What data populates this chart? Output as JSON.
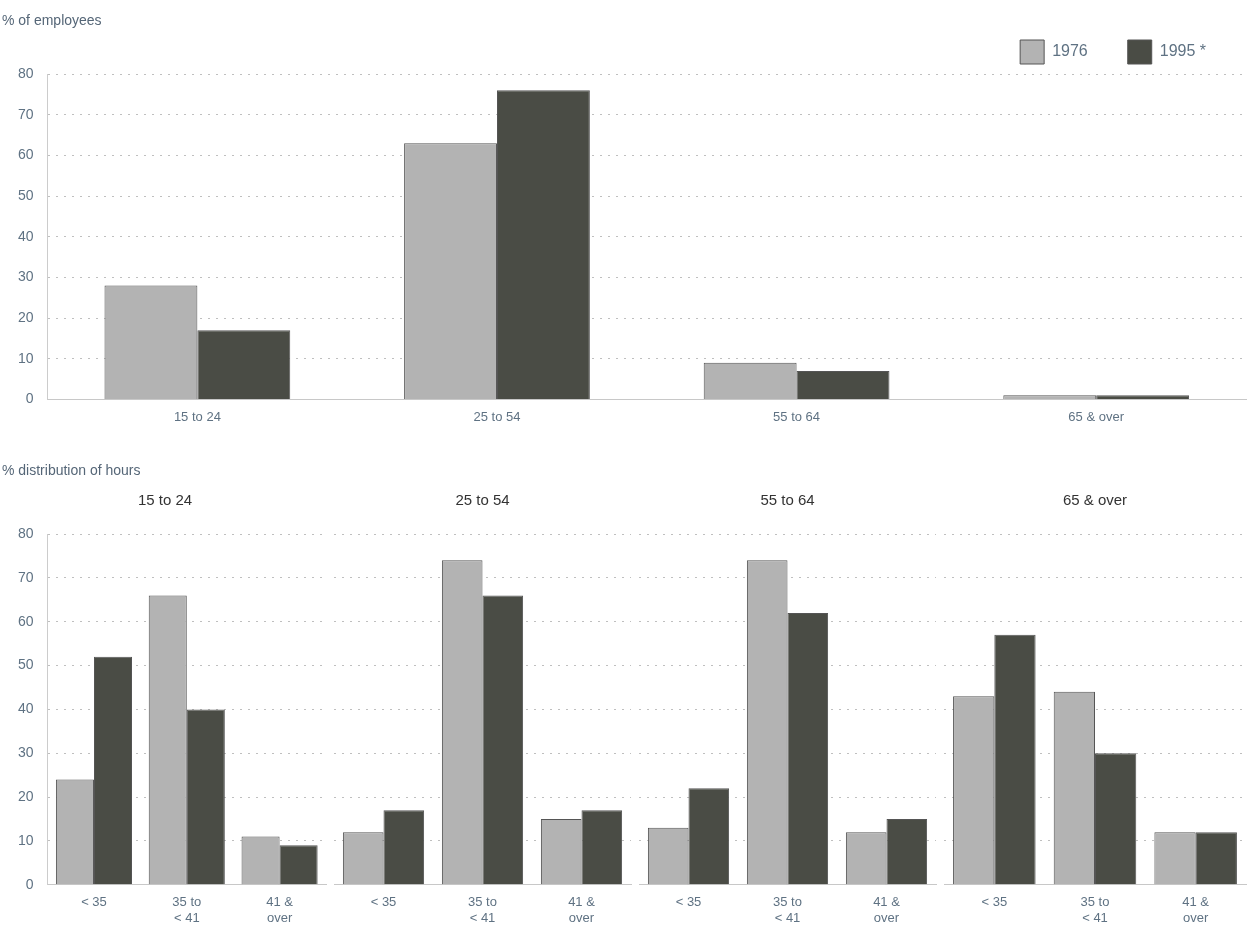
{
  "chart_data": [
    {
      "type": "bar",
      "ylabel": "% of employees",
      "categories": [
        "15 to 24",
        "25 to 54",
        "55 to 64",
        "65 & over"
      ],
      "series": [
        {
          "name": "1976",
          "color": "#b3b3b3",
          "values": [
            28,
            63,
            9,
            1
          ]
        },
        {
          "name": "1995 *",
          "color": "#4a4c45",
          "values": [
            17,
            76,
            7,
            1
          ]
        }
      ],
      "ylim": [
        0,
        80
      ],
      "yticks": [
        0,
        10,
        20,
        30,
        40,
        50,
        60,
        70,
        80
      ],
      "grid": "y",
      "legend": "top right"
    },
    {
      "type": "bar",
      "ylabel": "% distribution of hours",
      "title": "15 to 24",
      "categories": [
        "< 35",
        "35 to < 41",
        "41 & over"
      ],
      "series": [
        {
          "color": "#b3b3b3",
          "values": [
            24,
            66,
            11
          ]
        },
        {
          "color": "#4a4c45",
          "values": [
            52,
            40,
            9
          ]
        }
      ],
      "ylim": [
        0,
        80
      ],
      "yticks": [
        0,
        10,
        20,
        30,
        40,
        50,
        60,
        70,
        80
      ],
      "grid": "y"
    },
    {
      "type": "bar",
      "title": "25 to 54",
      "categories": [
        "< 35",
        "35 to < 41",
        "41 & over"
      ],
      "series": [
        {
          "color": "#b3b3b3",
          "values": [
            12,
            74,
            15
          ]
        },
        {
          "color": "#4a4c45",
          "values": [
            17,
            66,
            17
          ]
        }
      ],
      "ylim": [
        0,
        80
      ],
      "yticks": [
        0,
        10,
        20,
        30,
        40,
        50,
        60,
        70,
        80
      ],
      "grid": "y",
      "tick_labels": "x"
    },
    {
      "type": "bar",
      "title": "55 to 64",
      "categories": [
        "< 35",
        "35 to < 41",
        "41 & over"
      ],
      "series": [
        {
          "color": "#b3b3b3",
          "values": [
            13,
            74,
            12
          ]
        },
        {
          "color": "#4a4c45",
          "values": [
            22,
            62,
            15
          ]
        }
      ],
      "ylim": [
        0,
        80
      ],
      "yticks": [
        0,
        10,
        20,
        30,
        40,
        50,
        60,
        70,
        80
      ],
      "grid": "y",
      "tick_labels": "x"
    },
    {
      "type": "bar",
      "title": "65 & over",
      "categories": [
        "< 35",
        "35 to < 41",
        "41 & over"
      ],
      "series": [
        {
          "color": "#b3b3b3",
          "values": [
            43,
            44,
            12
          ]
        },
        {
          "color": "#4a4c45",
          "values": [
            57,
            30,
            12
          ]
        }
      ],
      "ylim": [
        0,
        80
      ],
      "yticks": [
        0,
        10,
        20,
        30,
        40,
        50,
        60,
        70,
        80
      ],
      "grid": "y",
      "tick_labels": "x"
    }
  ]
}
